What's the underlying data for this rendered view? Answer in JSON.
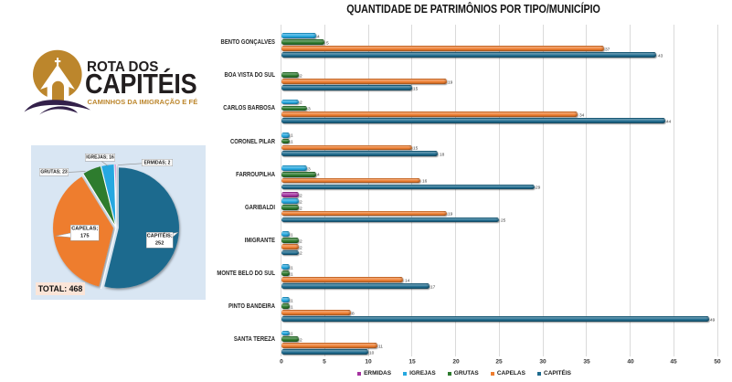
{
  "logo": {
    "brand_line1": "ROTA DOS",
    "brand_line2": "CAPITÉIS",
    "tagline": "CAMINHOS DA IMIGRAÇÃO E FÉ",
    "colors": {
      "gold": "#bc862c",
      "text": "#221e1f",
      "swoosh": "#33204a"
    }
  },
  "chart_data": [
    {
      "type": "pie",
      "title": "",
      "total_label": "TOTAL: 468",
      "total": 468,
      "background": "#d9e6f3",
      "direction": "clockwise",
      "start_angle_deg": 0,
      "slices": [
        {
          "name": "CAPITÉIS",
          "value": 252,
          "label": "CAPITÉIS; 252",
          "color": "#1f6b8e"
        },
        {
          "name": "CAPELAS",
          "value": 175,
          "label": "CAPELAS; 175",
          "color": "#ee7d2f"
        },
        {
          "name": "GRUTAS",
          "value": 23,
          "label": "GRUTAS; 23",
          "color": "#2e7b2f"
        },
        {
          "name": "IGREJAS",
          "value": 16,
          "label": "IGREJAS; 16",
          "color": "#25a8e0"
        },
        {
          "name": "ERMIDAS",
          "value": 2,
          "label": "ERMIDAS; 2",
          "color": "#a532a0"
        }
      ]
    },
    {
      "type": "bar",
      "orientation": "horizontal",
      "title": "QUANTIDADE DE PATRIMÔNIOS POR TIPO/MUNICÍPIO",
      "categories": [
        "BENTO GONÇALVES",
        "BOA VISTA DO SUL",
        "CARLOS BARBOSA",
        "CORONEL PILAR",
        "FARROUPILHA",
        "GARIBALDI",
        "IMIGRANTE",
        "MONTE BELO DO SUL",
        "PINTO BANDEIRA",
        "SANTA TEREZA"
      ],
      "series": [
        {
          "name": "ERMIDAS",
          "color": "#a532a0",
          "values": [
            0,
            0,
            0,
            0,
            0,
            2,
            0,
            0,
            0,
            0
          ]
        },
        {
          "name": "IGREJAS",
          "color": "#25a8e0",
          "values": [
            4,
            0,
            2,
            1,
            3,
            2,
            1,
            1,
            1,
            1
          ]
        },
        {
          "name": "GRUTAS",
          "color": "#2e7b2f",
          "values": [
            5,
            2,
            3,
            1,
            4,
            2,
            2,
            1,
            1,
            2
          ]
        },
        {
          "name": "CAPELAS",
          "color": "#ee7d2f",
          "values": [
            37,
            19,
            34,
            15,
            16,
            19,
            2,
            14,
            8,
            11
          ]
        },
        {
          "name": "CAPITÉIS",
          "color": "#1f6b8e",
          "values": [
            43,
            15,
            44,
            18,
            29,
            25,
            2,
            17,
            49,
            10
          ]
        }
      ],
      "x_axis": {
        "min": 0,
        "max": 50,
        "step": 5
      },
      "grid": true,
      "legend_position": "bottom",
      "value_labels": true
    }
  ]
}
